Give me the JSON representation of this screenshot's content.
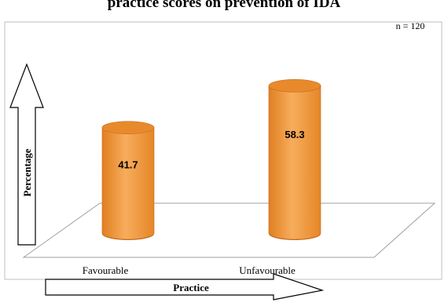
{
  "chart_data": {
    "type": "bar",
    "title": "practice scores on prevention of IDA",
    "n_label": "n = 120",
    "xlabel": "Practice",
    "ylabel": "Percentage",
    "categories": [
      "Favourable",
      "Unfavourable"
    ],
    "values": [
      41.7,
      58.3
    ],
    "value_labels": [
      "41.7",
      "58.3"
    ],
    "ylim": [
      0,
      70
    ],
    "grid": false,
    "legend": "none"
  },
  "colors": {
    "bar_main": "#f39a3d",
    "bar_top": "#e88a2c",
    "bar_edge": "#c9681a",
    "frame": "#bfbfbf",
    "floor": "#a0a0a0",
    "arrow": "#000000"
  }
}
